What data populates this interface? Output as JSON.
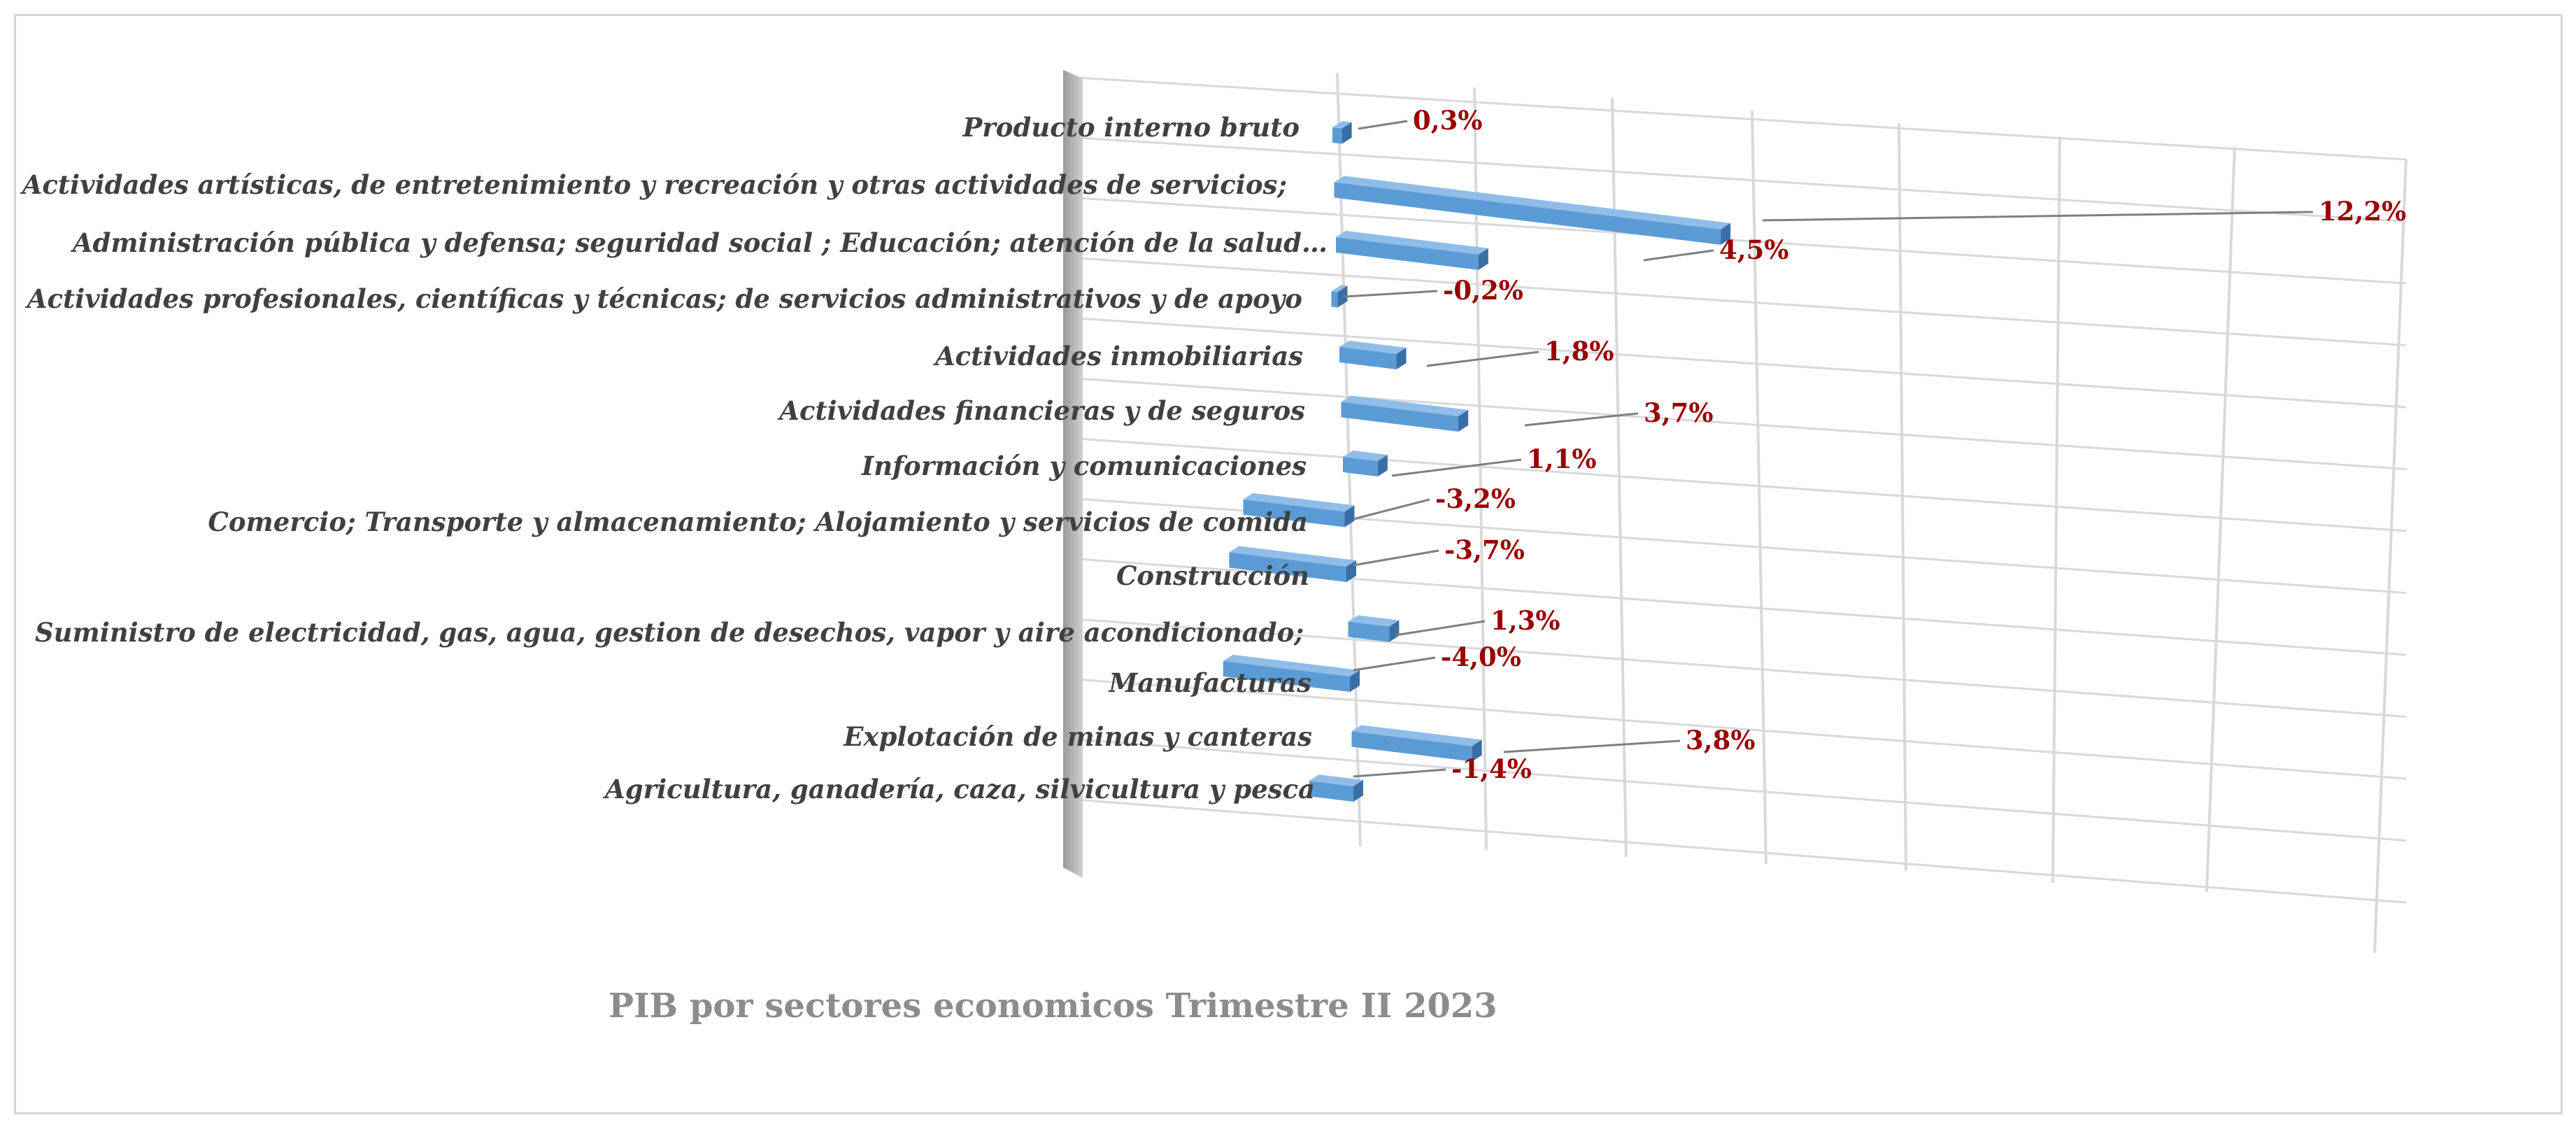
{
  "chart_data": {
    "type": "bar",
    "orientation": "horizontal",
    "three_d": true,
    "title": "PIB por sectores economicos Trimestre II 2023",
    "categories": [
      "Producto interno bruto",
      "Actividades artísticas, de entretenimiento y recreación y otras actividades de servicios;",
      "Administración pública y defensa; seguridad social ; Educación; atención de la salud…",
      "Actividades profesionales, científicas y técnicas; de servicios administrativos y de apoyo",
      "Actividades inmobiliarias",
      "Actividades financieras y de seguros",
      "Información y comunicaciones",
      "Comercio; Transporte y almacenamiento; Alojamiento y servicios de comida",
      "Construcción",
      "Suministro de electricidad, gas, agua, gestion de desechos, vapor y aire acondicionado;",
      "Manufacturas",
      "Explotación de minas y canteras",
      "Agricultura, ganadería, caza, silvicultura y pesca"
    ],
    "values": [
      0.3,
      12.2,
      4.5,
      -0.2,
      1.8,
      3.7,
      1.1,
      -3.2,
      -3.7,
      1.3,
      -4.0,
      3.8,
      -1.4
    ],
    "data_labels": [
      "0,3%",
      "12,2%",
      "4,5%",
      "-0,2%",
      "1,8%",
      "3,7%",
      "1,1%",
      "-3,2%",
      "-3,7%",
      "1,3%",
      "-4,0%",
      "3,8%",
      "-1,4%"
    ],
    "grid": true,
    "legend": "none",
    "colors": {
      "bar": "#5b9bd5",
      "bar_top": "#8fbde8",
      "bar_shadow": "#3a6ea5",
      "data_label": "#990000",
      "category_label": "#404040",
      "title": "#8c8c8c",
      "grid": "#d9d9d9"
    }
  }
}
